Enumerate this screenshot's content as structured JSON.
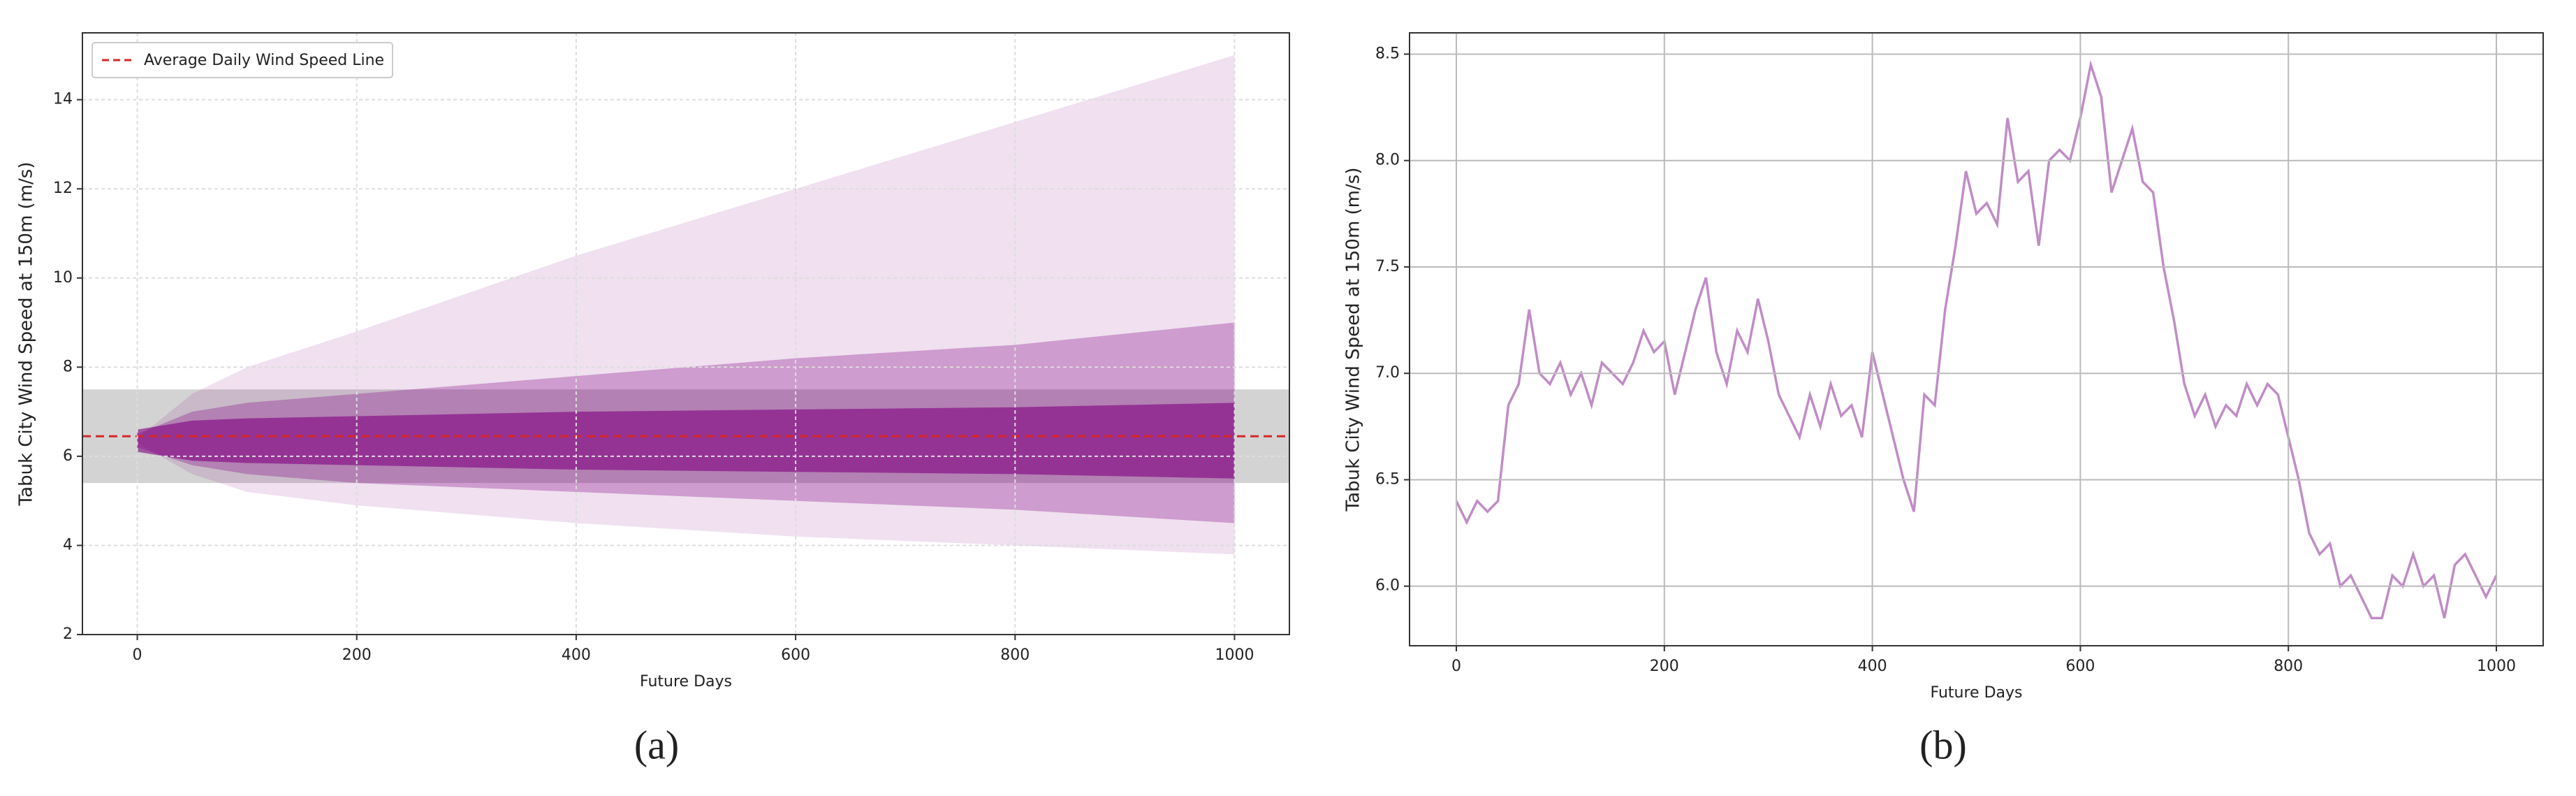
{
  "chart_data": [
    {
      "type": "fan",
      "caption": "(a)",
      "xlabel": "Future Days",
      "ylabel": "Tabuk City Wind Speed at 150m (m/s)",
      "xlim": [
        -50,
        1050
      ],
      "ylim": [
        2,
        15.5
      ],
      "xticks": [
        0,
        200,
        400,
        600,
        800,
        1000
      ],
      "yticks": [
        2,
        4,
        6,
        8,
        10,
        12,
        14
      ],
      "grid": true,
      "color": "#800080",
      "band": [
        5.4,
        7.5
      ],
      "band_color": "#c8c8c8",
      "mean": {
        "name": "Average Daily Wind Speed Line",
        "value": 6.45,
        "color": "#d62728"
      },
      "legend": "upper left",
      "envelopes": [
        {
          "x": [
            0,
            50,
            100,
            200,
            400,
            600,
            800,
            1000
          ],
          "upper": [
            6.4,
            7.4,
            8.0,
            8.8,
            10.5,
            12.0,
            13.5,
            15.0
          ],
          "lower": [
            6.3,
            5.6,
            5.2,
            4.9,
            4.5,
            4.2,
            4.0,
            3.8
          ],
          "opacity": 0.12
        },
        {
          "x": [
            0,
            50,
            100,
            200,
            400,
            600,
            800,
            1000
          ],
          "upper": [
            6.5,
            7.0,
            7.2,
            7.4,
            7.8,
            8.2,
            8.5,
            9.0
          ],
          "lower": [
            6.2,
            5.8,
            5.6,
            5.4,
            5.2,
            5.0,
            4.8,
            4.5
          ],
          "opacity": 0.3
        },
        {
          "x": [
            0,
            50,
            100,
            200,
            400,
            600,
            800,
            1000
          ],
          "upper": [
            6.6,
            6.8,
            6.85,
            6.9,
            7.0,
            7.05,
            7.1,
            7.2
          ],
          "lower": [
            6.1,
            5.9,
            5.85,
            5.8,
            5.7,
            5.65,
            5.6,
            5.5
          ],
          "opacity": 0.6
        }
      ]
    },
    {
      "type": "line",
      "caption": "(b)",
      "xlabel": "Future Days",
      "ylabel": "Tabuk City Wind Speed at 150m (m/s)",
      "xlim": [
        -45,
        1045
      ],
      "ylim": [
        5.72,
        8.6
      ],
      "xticks": [
        0,
        200,
        400,
        600,
        800,
        1000
      ],
      "yticks": [
        {
          "value": 6,
          "label": "6.0"
        },
        6.5,
        {
          "value": 7,
          "label": "7.0"
        },
        7.5,
        {
          "value": 8,
          "label": "8.0"
        },
        8.5
      ],
      "grid": true,
      "x": [
        0,
        10,
        20,
        30,
        40,
        50,
        60,
        70,
        80,
        90,
        100,
        110,
        120,
        130,
        140,
        150,
        160,
        170,
        180,
        190,
        200,
        210,
        220,
        230,
        240,
        250,
        260,
        270,
        280,
        290,
        300,
        310,
        320,
        330,
        340,
        350,
        360,
        370,
        380,
        390,
        400,
        410,
        420,
        430,
        440,
        450,
        460,
        470,
        480,
        490,
        500,
        510,
        520,
        530,
        540,
        550,
        560,
        570,
        580,
        590,
        600,
        610,
        620,
        630,
        640,
        650,
        660,
        670,
        680,
        690,
        700,
        710,
        720,
        730,
        740,
        750,
        760,
        770,
        780,
        790,
        800,
        810,
        820,
        830,
        840,
        850,
        860,
        870,
        880,
        890,
        900,
        910,
        920,
        930,
        940,
        950,
        960,
        970,
        980,
        990,
        1000
      ],
      "series": [
        {
          "color": "#c08cc6",
          "values": [
            6.4,
            6.3,
            6.4,
            6.35,
            6.4,
            6.85,
            6.95,
            7.3,
            7.0,
            6.95,
            7.05,
            6.9,
            7.0,
            6.85,
            7.05,
            7.0,
            6.95,
            7.05,
            7.2,
            7.1,
            7.15,
            6.9,
            7.1,
            7.3,
            7.45,
            7.1,
            6.95,
            7.2,
            7.1,
            7.35,
            7.15,
            6.9,
            6.8,
            6.7,
            6.9,
            6.75,
            6.95,
            6.8,
            6.85,
            6.7,
            7.1,
            6.9,
            6.7,
            6.5,
            6.35,
            6.9,
            6.85,
            7.3,
            7.6,
            7.95,
            7.75,
            7.8,
            7.7,
            8.2,
            7.9,
            7.95,
            7.6,
            8.0,
            8.05,
            8.0,
            8.2,
            8.45,
            8.3,
            7.85,
            8.0,
            8.15,
            7.9,
            7.85,
            7.5,
            7.25,
            6.95,
            6.8,
            6.9,
            6.75,
            6.85,
            6.8,
            6.95,
            6.85,
            6.95,
            6.9,
            6.7,
            6.5,
            6.25,
            6.15,
            6.2,
            6.0,
            6.05,
            5.95,
            5.85,
            5.85,
            6.05,
            6.0,
            6.15,
            6.0,
            6.05,
            5.85,
            6.1,
            6.15,
            6.05,
            5.95,
            6.05
          ]
        }
      ]
    }
  ]
}
